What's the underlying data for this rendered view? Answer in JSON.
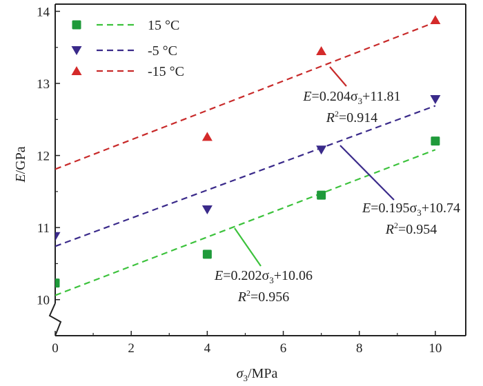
{
  "chart_data": {
    "type": "scatter",
    "xlabel": {
      "symbol": "σ",
      "sub": "3",
      "unit": "/MPa"
    },
    "ylabel": {
      "symbol": "E",
      "unit": "/GPa"
    },
    "xlim": [
      0,
      10.8
    ],
    "ylim": [
      9.5,
      14.1
    ],
    "axis_break_y": true,
    "x_ticks": [
      {
        "value": 0,
        "label": "0"
      },
      {
        "value": 2,
        "label": "2"
      },
      {
        "value": 4,
        "label": "4"
      },
      {
        "value": 6,
        "label": "6"
      },
      {
        "value": 8,
        "label": "8"
      },
      {
        "value": 10,
        "label": "10"
      }
    ],
    "y_ticks": [
      {
        "value": 10,
        "label": "10"
      },
      {
        "value": 11,
        "label": "11"
      },
      {
        "value": 12,
        "label": "12"
      },
      {
        "value": 13,
        "label": "13"
      },
      {
        "value": 14,
        "label": "14"
      }
    ],
    "legend_position": "top-left",
    "series": [
      {
        "name": "15 °C",
        "marker": "square",
        "color": "#1f9a3a",
        "line_color": "#3cc23c",
        "x": [
          0,
          4,
          7,
          10
        ],
        "y": [
          10.23,
          10.63,
          11.45,
          12.2
        ],
        "fit": {
          "slope": 0.202,
          "intercept": 10.06
        },
        "annotation": {
          "eq_prefix": "E",
          "eq_mid": "=0.202σ",
          "eq_sub": "3",
          "eq_suffix": "+10.06",
          "r2_prefix": "R",
          "r2_sup": "2",
          "r2_value": "=0.956"
        }
      },
      {
        "name": "-5 °C",
        "marker": "triangle-down",
        "color": "#3a2a8a",
        "line_color": "#3a2a8a",
        "x": [
          0,
          4,
          7,
          10
        ],
        "y": [
          10.88,
          11.25,
          12.08,
          12.78
        ],
        "fit": {
          "slope": 0.195,
          "intercept": 10.74
        },
        "annotation": {
          "eq_prefix": "E",
          "eq_mid": "=0.195σ",
          "eq_sub": "3",
          "eq_suffix": "+10.74",
          "r2_prefix": "R",
          "r2_sup": "2",
          "r2_value": "=0.954"
        }
      },
      {
        "name": "-15 °C",
        "marker": "triangle-up",
        "color": "#d42a2a",
        "line_color": "#c82a2a",
        "x": [
          4,
          7,
          10
        ],
        "y": [
          12.26,
          13.45,
          13.88
        ],
        "fit": {
          "slope": 0.204,
          "intercept": 11.81
        },
        "annotation": {
          "eq_prefix": "E",
          "eq_mid": "=0.204σ",
          "eq_sub": "3",
          "eq_suffix": "+11.81",
          "r2_prefix": "R",
          "r2_sup": "2",
          "r2_value": "=0.914"
        }
      }
    ]
  }
}
